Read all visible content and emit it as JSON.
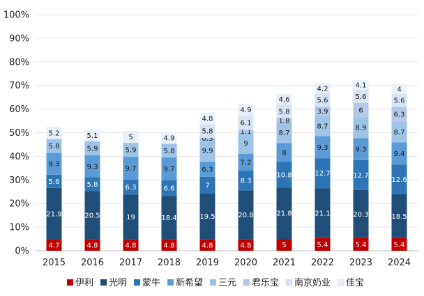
{
  "chart_data": {
    "type": "bar",
    "stacked": true,
    "categories": [
      "2015",
      "2016",
      "2017",
      "2018",
      "2019",
      "2020",
      "2021",
      "2022",
      "2023",
      "2024"
    ],
    "y_ticks": [
      "0%",
      "10%",
      "20%",
      "30%",
      "40%",
      "50%",
      "60%",
      "70%",
      "80%",
      "90%",
      "100%"
    ],
    "ylim": [
      0,
      100
    ],
    "legend_position": "bottom",
    "series": [
      {
        "name": "伊利",
        "color": "#c00000",
        "label_color": "#ffffff",
        "values": [
          4.7,
          4.8,
          4.8,
          4.8,
          4.8,
          4.8,
          5,
          5.4,
          5.4,
          5.4
        ]
      },
      {
        "name": "光明",
        "color": "#1f4e79",
        "label_color": "#ffffff",
        "values": [
          21.9,
          20.5,
          19,
          18.4,
          19.5,
          20.8,
          21.8,
          21.1,
          20.3,
          18.5
        ]
      },
      {
        "name": "蒙牛",
        "color": "#2e75b6",
        "label_color": "#ffffff",
        "values": [
          5.6,
          5.8,
          6.3,
          6.6,
          7,
          8.3,
          10.8,
          12.7,
          12.7,
          12.6
        ]
      },
      {
        "name": "新希望",
        "color": "#5b9bd5",
        "label_color": "#1a1a1a",
        "values": [
          9.3,
          9.3,
          9.7,
          9.7,
          6.3,
          7.2,
          8,
          9.3,
          9.3,
          9.4
        ]
      },
      {
        "name": "三元",
        "color": "#9dc3e6",
        "label_color": "#1a1a1a",
        "values": [
          5.8,
          5.9,
          5.9,
          5.8,
          9.9,
          9,
          8.7,
          8.7,
          8.9,
          8.7
        ]
      },
      {
        "name": "君乐宝",
        "color": "#b4c7e7",
        "label_color": "#1a1a1a",
        "values": [
          null,
          null,
          null,
          null,
          0.3,
          1.1,
          1.8,
          3.9,
          6,
          6.3
        ]
      },
      {
        "name": "南京奶业",
        "color": "#d6e4f5",
        "label_color": "#1a1a1a",
        "values": [
          null,
          null,
          null,
          null,
          5.8,
          6.1,
          5.8,
          5.6,
          5.6,
          5.6
        ]
      },
      {
        "name": "佳宝",
        "color": "#e8f0fa",
        "label_color": "#1a1a1a",
        "values": [
          5.2,
          5.1,
          5,
          4.9,
          4.8,
          4.9,
          4.6,
          4.2,
          4.1,
          4
        ]
      }
    ]
  }
}
